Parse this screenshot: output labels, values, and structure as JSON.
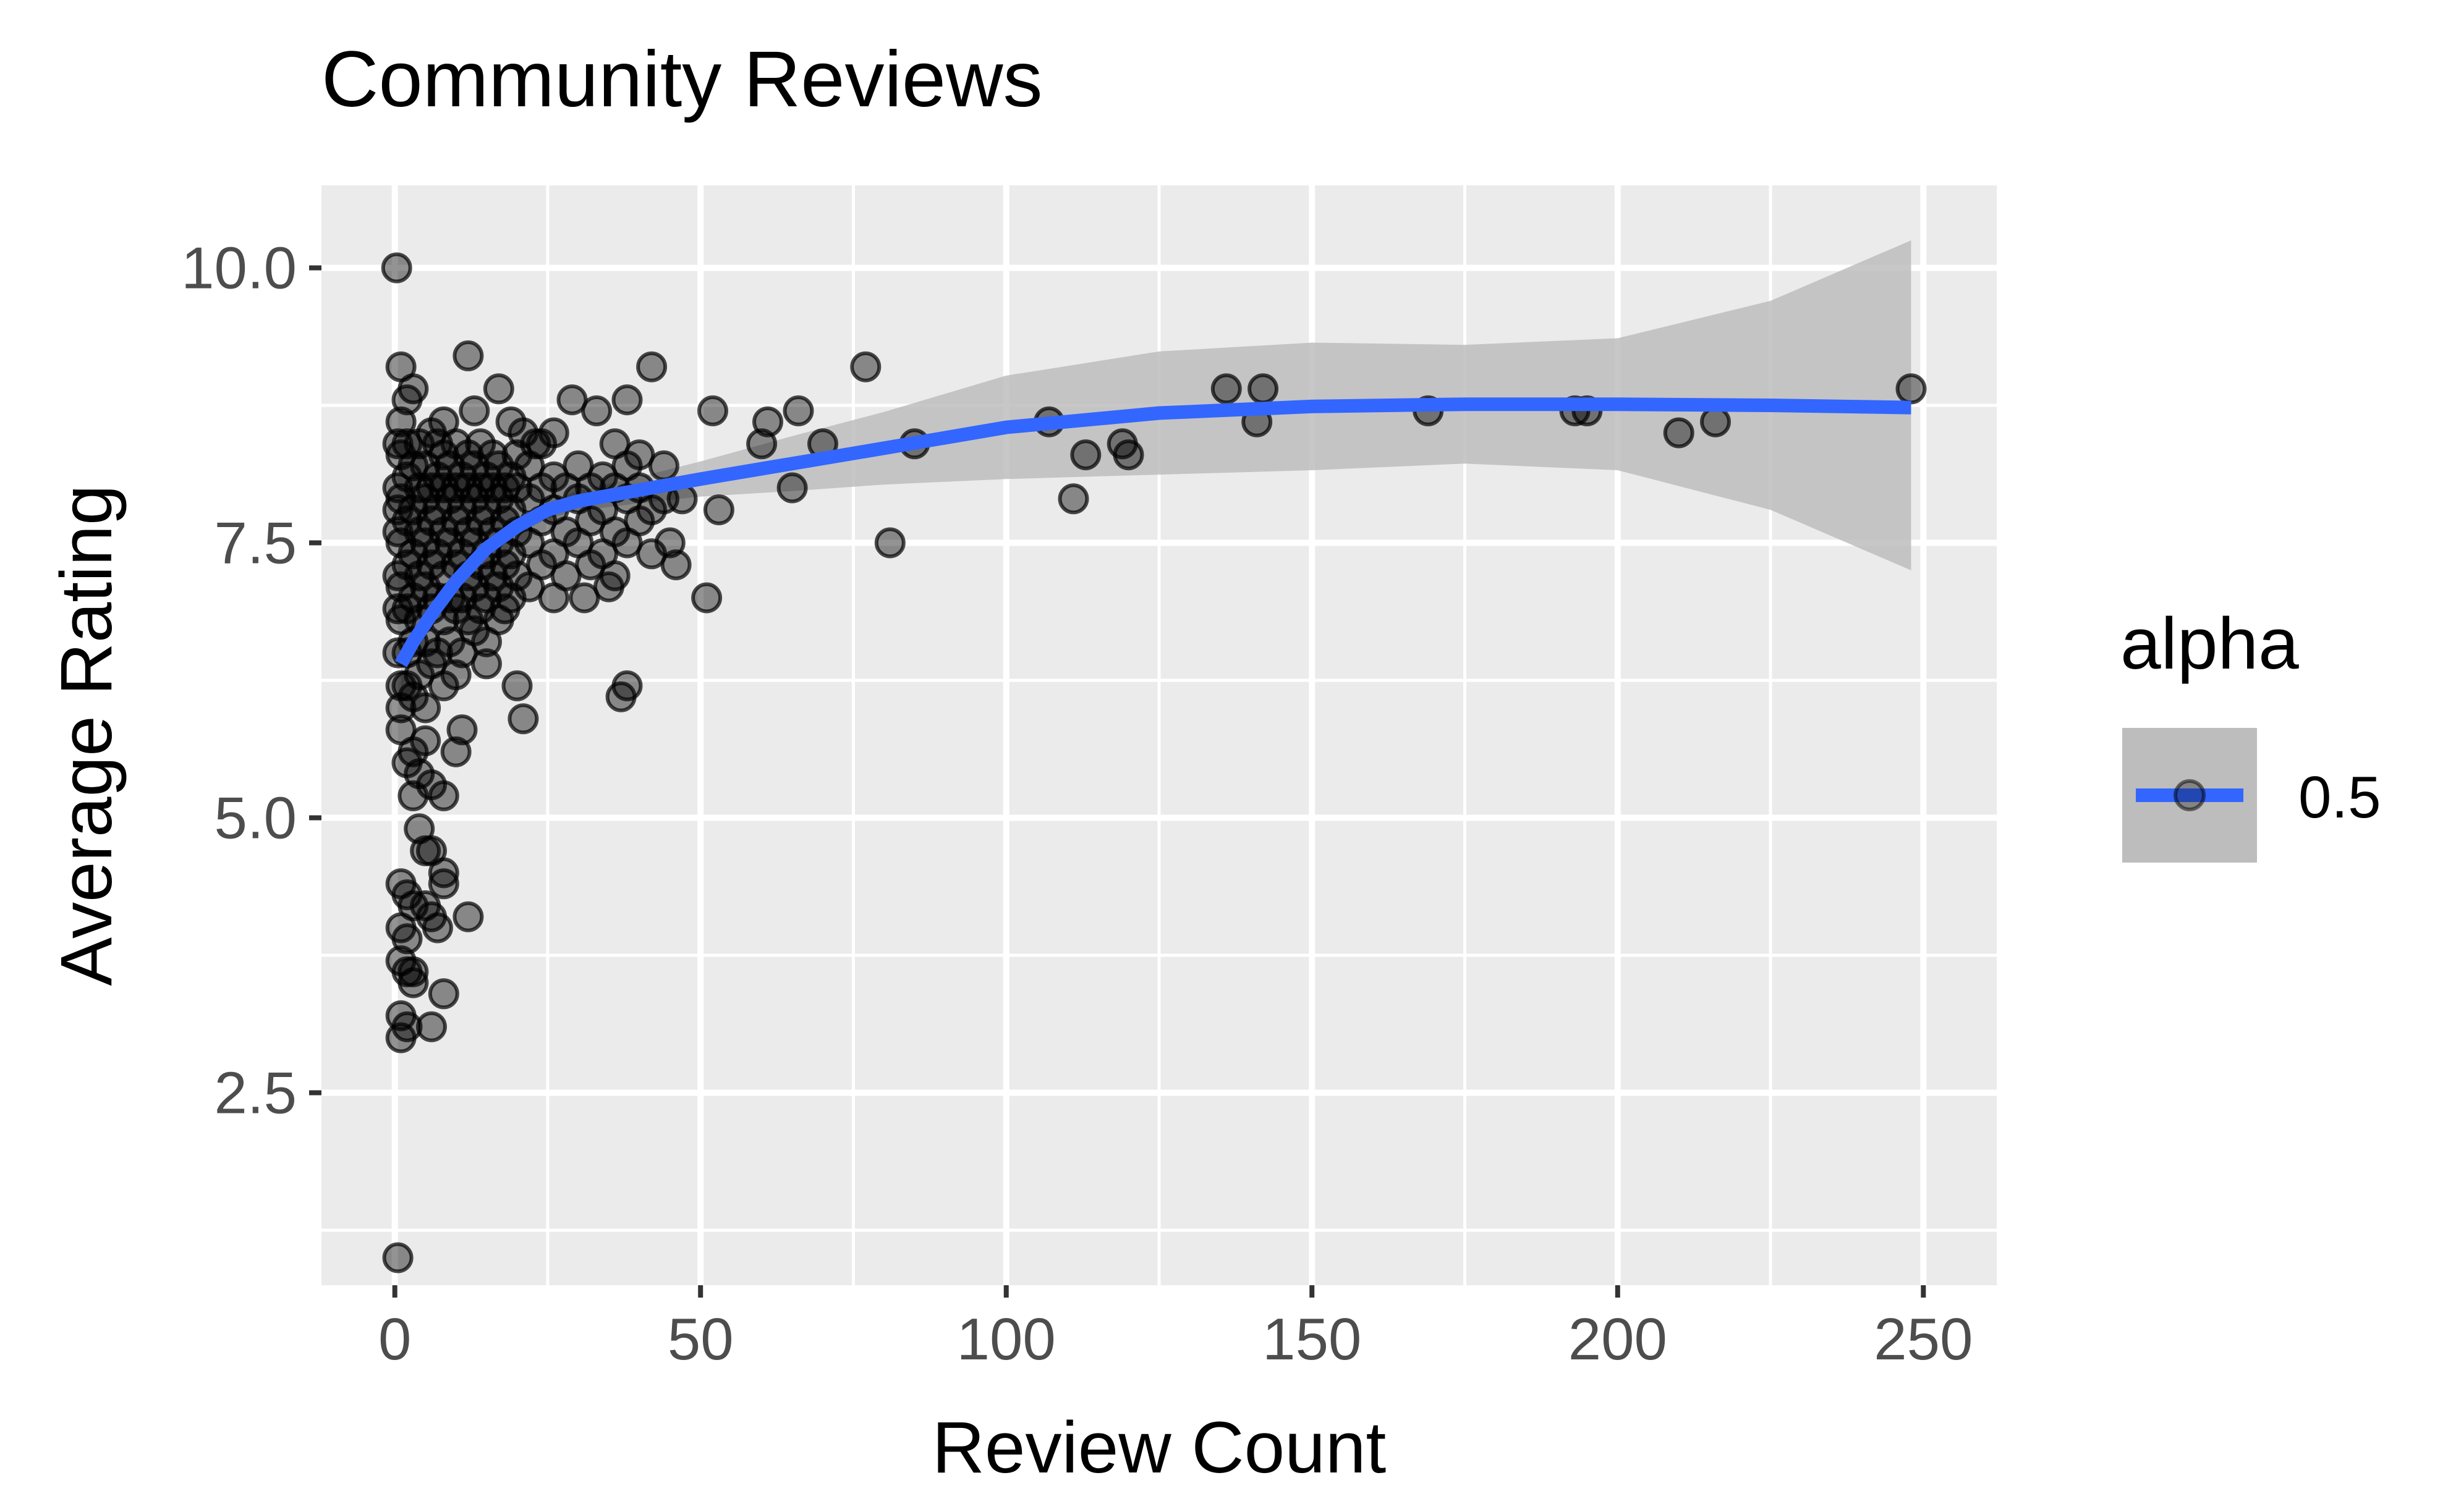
{
  "chart_data": {
    "type": "scatter",
    "title": "Community Reviews",
    "xlabel": "Review Count",
    "ylabel": "Average Rating",
    "xlim": [
      -12,
      262
    ],
    "ylim": [
      0.75,
      10.75
    ],
    "x_ticks": [
      0,
      50,
      100,
      150,
      200,
      250
    ],
    "x_tick_labels": [
      "0",
      "50",
      "100",
      "150",
      "200",
      "250"
    ],
    "y_ticks": [
      2.5,
      5.0,
      7.5,
      10.0
    ],
    "y_tick_labels": [
      "2.5",
      "5.0",
      "7.5",
      "10.0"
    ],
    "grid": true,
    "legend": {
      "title": "alpha",
      "position": "right",
      "entries": [
        {
          "label": "0.5"
        }
      ]
    },
    "colors": {
      "panel": "#EBEBEB",
      "grid": "#FFFFFF",
      "points": "#000000",
      "smooth_line": "#3366FF",
      "ribbon": "#BDBDBD"
    },
    "point_alpha": 0.5,
    "points": [
      [
        0.3,
        10.0
      ],
      [
        0.5,
        1.0
      ],
      [
        1,
        9.1
      ],
      [
        2,
        8.8
      ],
      [
        3,
        8.9
      ],
      [
        8,
        8.6
      ],
      [
        12,
        9.2
      ],
      [
        17,
        8.9
      ],
      [
        13,
        8.7
      ],
      [
        19,
        8.6
      ],
      [
        21,
        8.5
      ],
      [
        23,
        8.4
      ],
      [
        26,
        8.5
      ],
      [
        29,
        8.8
      ],
      [
        33,
        8.7
      ],
      [
        38,
        8.8
      ],
      [
        42,
        9.1
      ],
      [
        36,
        8.4
      ],
      [
        40,
        8.3
      ],
      [
        44,
        8.2
      ],
      [
        47,
        7.9
      ],
      [
        45,
        7.5
      ],
      [
        46,
        7.3
      ],
      [
        51,
        7.0
      ],
      [
        53,
        7.8
      ],
      [
        52,
        8.7
      ],
      [
        60,
        8.4
      ],
      [
        61,
        8.6
      ],
      [
        66,
        8.7
      ],
      [
        70,
        8.4
      ],
      [
        65,
        8.0
      ],
      [
        77,
        9.1
      ],
      [
        81,
        7.5
      ],
      [
        85,
        8.4
      ],
      [
        107,
        8.6
      ],
      [
        111,
        7.9
      ],
      [
        113,
        8.3
      ],
      [
        119,
        8.4
      ],
      [
        120,
        8.3
      ],
      [
        136,
        8.9
      ],
      [
        141,
        8.6
      ],
      [
        142,
        8.9
      ],
      [
        169,
        8.7
      ],
      [
        193,
        8.7
      ],
      [
        195,
        8.7
      ],
      [
        210,
        8.5
      ],
      [
        216,
        8.6
      ],
      [
        248,
        8.9
      ],
      [
        37,
        6.1
      ],
      [
        38,
        6.2
      ],
      [
        31,
        7.0
      ],
      [
        35,
        7.1
      ],
      [
        20,
        6.2
      ],
      [
        21,
        5.9
      ],
      [
        15,
        6.4
      ],
      [
        10,
        5.6
      ],
      [
        11,
        5.8
      ],
      [
        8,
        5.2
      ],
      [
        6,
        5.3
      ],
      [
        4,
        4.9
      ],
      [
        5,
        4.7
      ],
      [
        6,
        4.7
      ],
      [
        1,
        4.4
      ],
      [
        2,
        4.3
      ],
      [
        3,
        4.2
      ],
      [
        1,
        4.0
      ],
      [
        2,
        3.9
      ],
      [
        5,
        4.2
      ],
      [
        6,
        4.1
      ],
      [
        8,
        4.4
      ],
      [
        8,
        4.5
      ],
      [
        12,
        4.1
      ],
      [
        7,
        4.0
      ],
      [
        1,
        3.7
      ],
      [
        2,
        3.6
      ],
      [
        3,
        3.6
      ],
      [
        3,
        3.5
      ],
      [
        8,
        3.4
      ],
      [
        1,
        3.2
      ],
      [
        2,
        3.1
      ],
      [
        1,
        3.0
      ],
      [
        6,
        3.1
      ],
      [
        1,
        5.8
      ],
      [
        2,
        5.5
      ],
      [
        3,
        5.6
      ],
      [
        4,
        5.4
      ],
      [
        5,
        5.7
      ],
      [
        3,
        5.2
      ],
      [
        0.5,
        7.6
      ],
      [
        0.5,
        7.8
      ],
      [
        0.5,
        8.0
      ],
      [
        0.5,
        8.4
      ],
      [
        0.5,
        7.2
      ],
      [
        0.5,
        6.9
      ],
      [
        0.5,
        6.5
      ],
      [
        1,
        7.9
      ],
      [
        1,
        7.5
      ],
      [
        1,
        7.1
      ],
      [
        1,
        6.8
      ],
      [
        1,
        8.3
      ],
      [
        1,
        8.6
      ],
      [
        1,
        6.2
      ],
      [
        1,
        6.0
      ],
      [
        2,
        7.7
      ],
      [
        2,
        7.3
      ],
      [
        2,
        6.9
      ],
      [
        2,
        8.1
      ],
      [
        2,
        8.4
      ],
      [
        2,
        6.5
      ],
      [
        2,
        6.2
      ],
      [
        3,
        7.8
      ],
      [
        3,
        7.4
      ],
      [
        3,
        7.0
      ],
      [
        3,
        8.2
      ],
      [
        3,
        6.6
      ],
      [
        3,
        6.1
      ],
      [
        4,
        7.6
      ],
      [
        4,
        7.2
      ],
      [
        4,
        8.0
      ],
      [
        4,
        6.8
      ],
      [
        4,
        8.4
      ],
      [
        4,
        6.3
      ],
      [
        5,
        7.9
      ],
      [
        5,
        7.5
      ],
      [
        5,
        7.1
      ],
      [
        5,
        8.2
      ],
      [
        5,
        6.6
      ],
      [
        5,
        6.0
      ],
      [
        6,
        7.7
      ],
      [
        6,
        7.3
      ],
      [
        6,
        8.0
      ],
      [
        6,
        6.9
      ],
      [
        6,
        8.5
      ],
      [
        6,
        6.4
      ],
      [
        7,
        7.8
      ],
      [
        7,
        7.4
      ],
      [
        7,
        8.1
      ],
      [
        7,
        7.0
      ],
      [
        7,
        6.5
      ],
      [
        7,
        8.4
      ],
      [
        8,
        7.6
      ],
      [
        8,
        8.0
      ],
      [
        8,
        7.2
      ],
      [
        8,
        6.8
      ],
      [
        8,
        6.2
      ],
      [
        8,
        8.3
      ],
      [
        9,
        7.9
      ],
      [
        9,
        7.5
      ],
      [
        9,
        8.2
      ],
      [
        9,
        7.0
      ],
      [
        9,
        6.6
      ],
      [
        10,
        7.7
      ],
      [
        10,
        8.0
      ],
      [
        10,
        7.3
      ],
      [
        10,
        6.9
      ],
      [
        10,
        8.4
      ],
      [
        10,
        6.3
      ],
      [
        11,
        7.8
      ],
      [
        11,
        7.4
      ],
      [
        11,
        8.1
      ],
      [
        11,
        7.0
      ],
      [
        11,
        6.5
      ],
      [
        12,
        7.6
      ],
      [
        12,
        8.0
      ],
      [
        12,
        7.2
      ],
      [
        12,
        8.3
      ],
      [
        12,
        6.8
      ],
      [
        13,
        7.9
      ],
      [
        13,
        7.5
      ],
      [
        13,
        8.2
      ],
      [
        13,
        7.1
      ],
      [
        13,
        6.7
      ],
      [
        14,
        7.7
      ],
      [
        14,
        8.0
      ],
      [
        14,
        7.3
      ],
      [
        14,
        6.9
      ],
      [
        14,
        8.4
      ],
      [
        15,
        7.8
      ],
      [
        15,
        7.4
      ],
      [
        15,
        8.1
      ],
      [
        15,
        7.0
      ],
      [
        15,
        6.6
      ],
      [
        16,
        7.6
      ],
      [
        16,
        8.0
      ],
      [
        16,
        7.2
      ],
      [
        16,
        8.3
      ],
      [
        17,
        7.9
      ],
      [
        17,
        7.5
      ],
      [
        17,
        8.2
      ],
      [
        17,
        7.1
      ],
      [
        17,
        6.8
      ],
      [
        18,
        7.7
      ],
      [
        18,
        8.0
      ],
      [
        18,
        7.3
      ],
      [
        18,
        6.9
      ],
      [
        19,
        7.8
      ],
      [
        19,
        7.4
      ],
      [
        19,
        8.1
      ],
      [
        19,
        7.0
      ],
      [
        20,
        7.6
      ],
      [
        20,
        8.0
      ],
      [
        20,
        7.2
      ],
      [
        20,
        8.3
      ],
      [
        22,
        7.9
      ],
      [
        22,
        7.5
      ],
      [
        22,
        8.2
      ],
      [
        22,
        7.1
      ],
      [
        24,
        7.7
      ],
      [
        24,
        8.0
      ],
      [
        24,
        7.3
      ],
      [
        24,
        8.4
      ],
      [
        26,
        7.8
      ],
      [
        26,
        7.4
      ],
      [
        26,
        8.1
      ],
      [
        26,
        7.0
      ],
      [
        28,
        7.6
      ],
      [
        28,
        8.0
      ],
      [
        28,
        7.2
      ],
      [
        30,
        7.9
      ],
      [
        30,
        7.5
      ],
      [
        30,
        8.2
      ],
      [
        32,
        7.7
      ],
      [
        32,
        8.0
      ],
      [
        32,
        7.3
      ],
      [
        34,
        7.8
      ],
      [
        34,
        7.4
      ],
      [
        34,
        8.1
      ],
      [
        36,
        7.6
      ],
      [
        36,
        8.0
      ],
      [
        36,
        7.2
      ],
      [
        38,
        7.9
      ],
      [
        38,
        7.5
      ],
      [
        38,
        8.2
      ],
      [
        40,
        7.7
      ],
      [
        40,
        8.0
      ],
      [
        42,
        7.8
      ],
      [
        42,
        7.4
      ],
      [
        44,
        7.9
      ]
    ],
    "smooth": {
      "method": "loess",
      "x": [
        1,
        3,
        6,
        10,
        15,
        20,
        25,
        30,
        40,
        50,
        65,
        80,
        100,
        125,
        150,
        175,
        200,
        225,
        248
      ],
      "y": [
        6.4,
        6.6,
        6.85,
        7.15,
        7.45,
        7.65,
        7.8,
        7.88,
        7.98,
        8.08,
        8.22,
        8.36,
        8.55,
        8.68,
        8.74,
        8.76,
        8.76,
        8.75,
        8.73
      ],
      "lower": [
        6.15,
        6.45,
        6.75,
        7.07,
        7.38,
        7.58,
        7.72,
        7.79,
        7.86,
        7.92,
        7.97,
        8.03,
        8.08,
        8.12,
        8.16,
        8.22,
        8.16,
        7.8,
        7.25
      ],
      "upper": [
        6.65,
        6.75,
        6.95,
        7.23,
        7.52,
        7.72,
        7.88,
        7.97,
        8.1,
        8.24,
        8.47,
        8.69,
        9.02,
        9.24,
        9.32,
        9.3,
        9.36,
        9.7,
        10.25
      ]
    }
  }
}
